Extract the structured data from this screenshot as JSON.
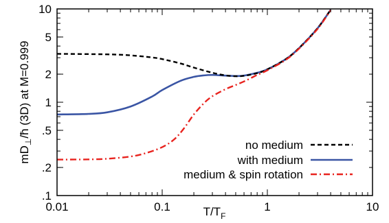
{
  "chart_data": {
    "type": "line",
    "xlabel": {
      "main": "T/T",
      "sub": "F"
    },
    "ylabel": {
      "prefix": "mD",
      "sub": "⊥",
      "suffix": "/ħ (3D) at M=0.999"
    },
    "xscale": "log",
    "yscale": "log",
    "xlim": [
      0.01,
      10
    ],
    "ylim": [
      0.1,
      10
    ],
    "xticks": [
      {
        "value": 0.01,
        "label": "0.01"
      },
      {
        "value": 0.1,
        "label": "0.1"
      },
      {
        "value": 1,
        "label": "1"
      },
      {
        "value": 10,
        "label": "10"
      }
    ],
    "yticks": [
      {
        "value": 0.1,
        "label": ".1"
      },
      {
        "value": 0.2,
        "label": ".2"
      },
      {
        "value": 0.5,
        "label": ".5"
      },
      {
        "value": 1,
        "label": "1"
      },
      {
        "value": 2,
        "label": "2"
      },
      {
        "value": 5,
        "label": "5"
      },
      {
        "value": 10,
        "label": "10"
      }
    ],
    "grid": false,
    "legend_position": "bottom-right",
    "series": [
      {
        "name": "no medium",
        "color": "#000000",
        "style": "dashed",
        "points": [
          [
            0.01,
            3.3
          ],
          [
            0.03,
            3.26
          ],
          [
            0.05,
            3.18
          ],
          [
            0.08,
            3.02
          ],
          [
            0.1,
            2.9
          ],
          [
            0.15,
            2.6
          ],
          [
            0.2,
            2.35
          ],
          [
            0.3,
            2.07
          ],
          [
            0.4,
            1.94
          ],
          [
            0.5,
            1.9
          ],
          [
            0.6,
            1.92
          ],
          [
            0.8,
            2.05
          ],
          [
            1.0,
            2.25
          ],
          [
            1.5,
            2.9
          ],
          [
            2.0,
            3.8
          ],
          [
            3.0,
            6.2
          ],
          [
            4.0,
            9.8
          ]
        ]
      },
      {
        "name": "with medium",
        "color": "#3a55a4",
        "style": "solid",
        "points": [
          [
            0.01,
            0.74
          ],
          [
            0.02,
            0.75
          ],
          [
            0.03,
            0.78
          ],
          [
            0.05,
            0.9
          ],
          [
            0.08,
            1.15
          ],
          [
            0.1,
            1.35
          ],
          [
            0.15,
            1.7
          ],
          [
            0.2,
            1.87
          ],
          [
            0.25,
            1.94
          ],
          [
            0.3,
            1.96
          ],
          [
            0.4,
            1.93
          ],
          [
            0.5,
            1.91
          ],
          [
            0.6,
            1.93
          ],
          [
            0.8,
            2.07
          ],
          [
            1.0,
            2.25
          ],
          [
            1.5,
            2.9
          ],
          [
            2.0,
            3.8
          ],
          [
            3.0,
            6.2
          ],
          [
            4.0,
            9.8
          ]
        ]
      },
      {
        "name": "medium & spin rotation",
        "color": "#e8231e",
        "style": "dashdot",
        "points": [
          [
            0.01,
            0.243
          ],
          [
            0.02,
            0.244
          ],
          [
            0.03,
            0.248
          ],
          [
            0.05,
            0.262
          ],
          [
            0.07,
            0.285
          ],
          [
            0.1,
            0.33
          ],
          [
            0.13,
            0.4
          ],
          [
            0.16,
            0.52
          ],
          [
            0.2,
            0.74
          ],
          [
            0.25,
            0.98
          ],
          [
            0.3,
            1.16
          ],
          [
            0.4,
            1.38
          ],
          [
            0.5,
            1.53
          ],
          [
            0.6,
            1.67
          ],
          [
            0.7,
            1.82
          ],
          [
            0.8,
            1.96
          ],
          [
            1.0,
            2.2
          ],
          [
            1.5,
            2.85
          ],
          [
            2.0,
            3.75
          ],
          [
            3.0,
            6.1
          ],
          [
            4.0,
            9.7
          ]
        ]
      }
    ]
  }
}
